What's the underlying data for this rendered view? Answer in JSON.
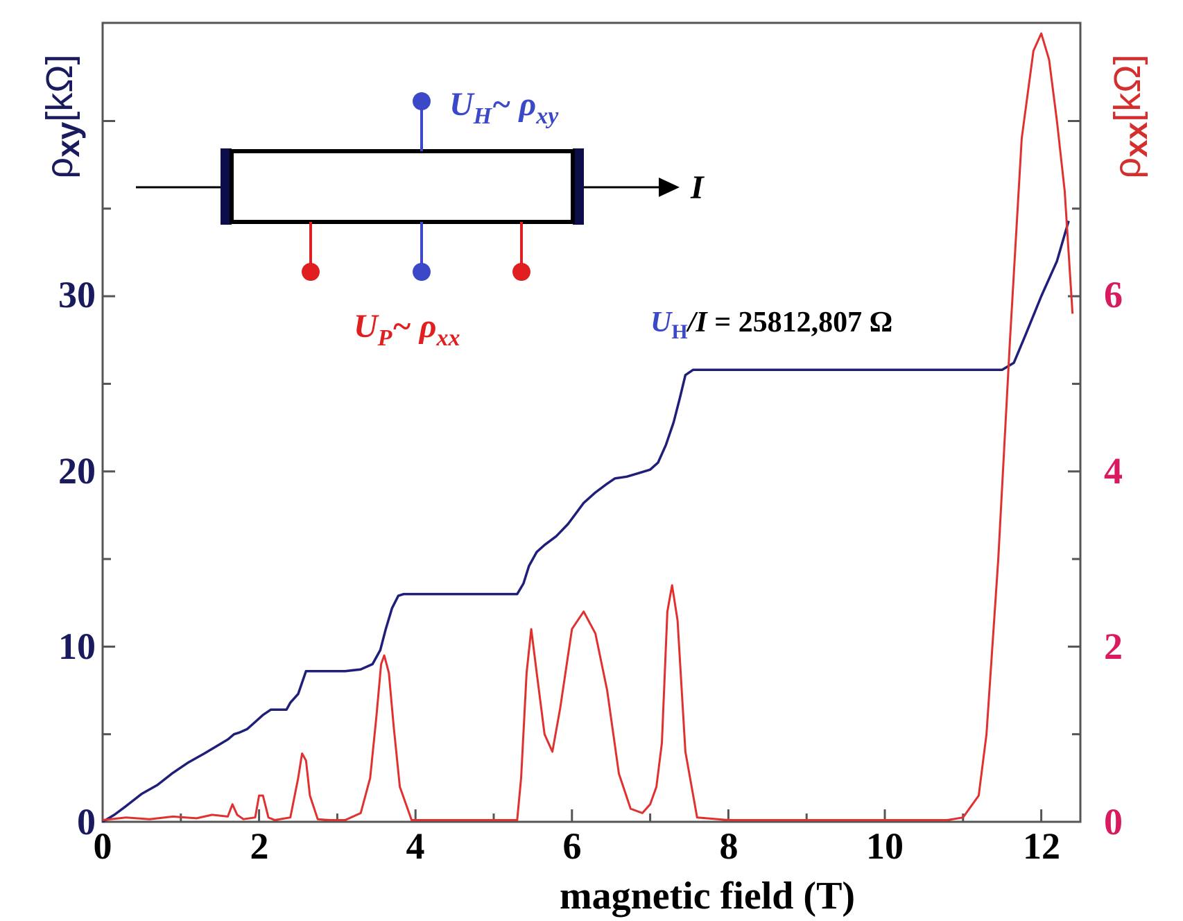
{
  "chart_data": {
    "type": "line",
    "xlabel": "magnetic field (T)",
    "ylabel_left": {
      "base": "ρ",
      "sub": "xy",
      "unit": "[kΩ]"
    },
    "ylabel_right": {
      "base": "ρ",
      "sub": "xx",
      "unit": "[kΩ]"
    },
    "xlim": [
      0,
      12.5
    ],
    "ylim_left": [
      0,
      45.6
    ],
    "ylim_right": [
      0,
      9.12
    ],
    "x_ticks": [
      "0",
      "2",
      "4",
      "6",
      "8",
      "10",
      "12"
    ],
    "y_left_ticks": [
      "0",
      "10",
      "20",
      "30"
    ],
    "y_right_ticks": [
      "0",
      "2",
      "4",
      "6"
    ],
    "grid": false,
    "colors": {
      "rho_xy": "#1f1f7a",
      "rho_xx": "#e03030",
      "left_axis_text": "#1a1a5e",
      "right_axis_text": "#d81b60",
      "right_label": "#d32f2f",
      "hall_contact": "#3b48c8",
      "long_contact": "#e02020"
    },
    "series": [
      {
        "axis": "left",
        "color": "#1f1f7a",
        "x": [
          0,
          0.15,
          0.3,
          0.5,
          0.7,
          0.9,
          1.1,
          1.3,
          1.45,
          1.6,
          1.68,
          1.75,
          1.85,
          1.95,
          2.05,
          2.15,
          2.25,
          2.35,
          2.4,
          2.5,
          2.6,
          2.7,
          2.9,
          3.1,
          3.3,
          3.45,
          3.55,
          3.62,
          3.7,
          3.78,
          3.85,
          4.0,
          4.5,
          5.0,
          5.3,
          5.38,
          5.45,
          5.55,
          5.65,
          5.8,
          5.95,
          6.05,
          6.15,
          6.3,
          6.45,
          6.55,
          6.7,
          6.85,
          7.0,
          7.1,
          7.2,
          7.3,
          7.38,
          7.45,
          7.55,
          8.0,
          9.0,
          10.0,
          11.0,
          11.5,
          11.65,
          11.8,
          12.0,
          12.2,
          12.35
        ],
        "y": [
          0,
          0.4,
          0.9,
          1.6,
          2.1,
          2.8,
          3.4,
          3.9,
          4.3,
          4.7,
          5.0,
          5.1,
          5.3,
          5.7,
          6.1,
          6.4,
          6.4,
          6.4,
          6.8,
          7.3,
          8.6,
          8.6,
          8.6,
          8.6,
          8.7,
          9.0,
          9.8,
          11.0,
          12.2,
          12.9,
          13.0,
          13.0,
          13.0,
          13.0,
          13.0,
          13.6,
          14.6,
          15.4,
          15.8,
          16.3,
          17.0,
          17.6,
          18.2,
          18.8,
          19.3,
          19.6,
          19.7,
          19.9,
          20.1,
          20.5,
          21.5,
          22.8,
          24.2,
          25.5,
          25.8,
          25.8,
          25.8,
          25.8,
          25.8,
          25.8,
          26.2,
          27.8,
          30.0,
          32.0,
          34.3
        ]
      },
      {
        "axis": "right",
        "color": "#e03030",
        "x": [
          0,
          0.3,
          0.6,
          0.9,
          1.2,
          1.4,
          1.6,
          1.66,
          1.72,
          1.8,
          1.95,
          2.0,
          2.05,
          2.12,
          2.2,
          2.4,
          2.5,
          2.55,
          2.6,
          2.65,
          2.75,
          2.9,
          3.1,
          3.3,
          3.42,
          3.5,
          3.56,
          3.6,
          3.66,
          3.72,
          3.8,
          3.95,
          4.5,
          5.0,
          5.3,
          5.35,
          5.42,
          5.48,
          5.55,
          5.65,
          5.75,
          5.85,
          6.0,
          6.15,
          6.3,
          6.45,
          6.6,
          6.75,
          6.9,
          7.0,
          7.08,
          7.15,
          7.22,
          7.28,
          7.35,
          7.45,
          7.6,
          8.0,
          9.0,
          10.0,
          10.8,
          11.0,
          11.2,
          11.3,
          11.45,
          11.6,
          11.75,
          11.9,
          12.0,
          12.1,
          12.2,
          12.3,
          12.4
        ],
        "y": [
          0.02,
          0.05,
          0.03,
          0.06,
          0.04,
          0.08,
          0.06,
          0.2,
          0.08,
          0.03,
          0.05,
          0.3,
          0.3,
          0.05,
          0.02,
          0.05,
          0.5,
          0.78,
          0.7,
          0.3,
          0.03,
          0.02,
          0.02,
          0.1,
          0.5,
          1.2,
          1.8,
          1.9,
          1.7,
          1.1,
          0.4,
          0.02,
          0.02,
          0.02,
          0.02,
          0.5,
          1.7,
          2.2,
          1.7,
          1.0,
          0.8,
          1.3,
          2.2,
          2.4,
          2.15,
          1.5,
          0.55,
          0.15,
          0.1,
          0.2,
          0.4,
          0.9,
          2.4,
          2.7,
          2.3,
          0.8,
          0.05,
          0.02,
          0.02,
          0.02,
          0.02,
          0.05,
          0.3,
          1.0,
          3.0,
          5.5,
          7.8,
          8.8,
          9.0,
          8.7,
          8.0,
          7.2,
          5.8
        ]
      }
    ],
    "inset": {
      "current_label": "I",
      "hall_label": {
        "main": "U",
        "sub": "H",
        "rest": "~ ρ",
        "rest_sub": "xy"
      },
      "long_label": {
        "main": "U",
        "sub": "P",
        "rest": "~ ρ",
        "rest_sub": "xx"
      }
    },
    "annotation": {
      "u": "U",
      "sub": "H",
      "slash": "/",
      "i": "I",
      "value": " = 25812,807 Ω"
    }
  }
}
